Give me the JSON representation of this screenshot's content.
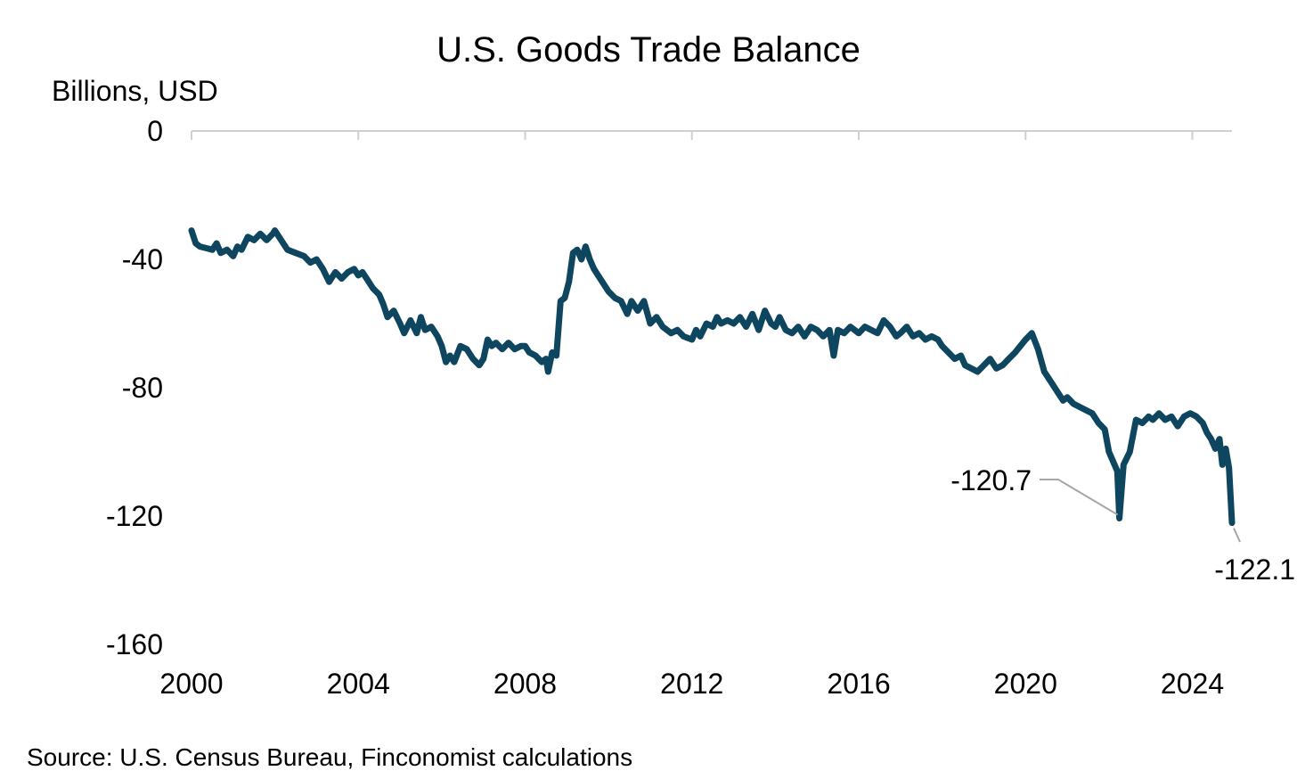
{
  "chart_data": {
    "type": "line",
    "title": "U.S. Goods Trade Balance",
    "ylabel": "Billions, USD",
    "xlabel": "",
    "source": "Source: U.S. Census Bureau, Finconomist calculations",
    "xlim": [
      2000,
      2024.95
    ],
    "ylim": [
      -160,
      0
    ],
    "x_ticks": [
      2000,
      2004,
      2008,
      2012,
      2016,
      2020,
      2024
    ],
    "y_ticks": [
      0,
      -40,
      -80,
      -120,
      -160
    ],
    "series": [
      {
        "name": "U.S. Goods Trade Balance",
        "color": "#0e4660",
        "points": [
          [
            2000.0,
            -31
          ],
          [
            2000.1,
            -35
          ],
          [
            2000.2,
            -36
          ],
          [
            2000.35,
            -36.5
          ],
          [
            2000.5,
            -37
          ],
          [
            2000.6,
            -35
          ],
          [
            2000.7,
            -38
          ],
          [
            2000.85,
            -37
          ],
          [
            2001.0,
            -39
          ],
          [
            2001.1,
            -36
          ],
          [
            2001.2,
            -37
          ],
          [
            2001.35,
            -33
          ],
          [
            2001.5,
            -34
          ],
          [
            2001.65,
            -32
          ],
          [
            2001.8,
            -34
          ],
          [
            2001.95,
            -32
          ],
          [
            2002.0,
            -31
          ],
          [
            2002.15,
            -34
          ],
          [
            2002.3,
            -37
          ],
          [
            2002.5,
            -38
          ],
          [
            2002.7,
            -39
          ],
          [
            2002.85,
            -41
          ],
          [
            2003.0,
            -40
          ],
          [
            2003.15,
            -43
          ],
          [
            2003.3,
            -47
          ],
          [
            2003.45,
            -44
          ],
          [
            2003.6,
            -46
          ],
          [
            2003.75,
            -44
          ],
          [
            2003.9,
            -43
          ],
          [
            2004.0,
            -45
          ],
          [
            2004.1,
            -44
          ],
          [
            2004.2,
            -46
          ],
          [
            2004.35,
            -49
          ],
          [
            2004.5,
            -51
          ],
          [
            2004.6,
            -54
          ],
          [
            2004.7,
            -58
          ],
          [
            2004.85,
            -56
          ],
          [
            2005.0,
            -60
          ],
          [
            2005.1,
            -63
          ],
          [
            2005.25,
            -59
          ],
          [
            2005.4,
            -63
          ],
          [
            2005.5,
            -58
          ],
          [
            2005.6,
            -62
          ],
          [
            2005.75,
            -61
          ],
          [
            2005.9,
            -64
          ],
          [
            2006.0,
            -67
          ],
          [
            2006.1,
            -72
          ],
          [
            2006.2,
            -70
          ],
          [
            2006.3,
            -72
          ],
          [
            2006.45,
            -67
          ],
          [
            2006.6,
            -68
          ],
          [
            2006.75,
            -71
          ],
          [
            2006.9,
            -73
          ],
          [
            2007.0,
            -71
          ],
          [
            2007.1,
            -65
          ],
          [
            2007.2,
            -67
          ],
          [
            2007.3,
            -66
          ],
          [
            2007.45,
            -68
          ],
          [
            2007.6,
            -66
          ],
          [
            2007.75,
            -68
          ],
          [
            2007.9,
            -67
          ],
          [
            2008.0,
            -67
          ],
          [
            2008.1,
            -69
          ],
          [
            2008.25,
            -70
          ],
          [
            2008.4,
            -72
          ],
          [
            2008.5,
            -71
          ],
          [
            2008.55,
            -75
          ],
          [
            2008.65,
            -69
          ],
          [
            2008.75,
            -70
          ],
          [
            2008.85,
            -53
          ],
          [
            2008.95,
            -52
          ],
          [
            2009.05,
            -47
          ],
          [
            2009.15,
            -38
          ],
          [
            2009.25,
            -37
          ],
          [
            2009.35,
            -40
          ],
          [
            2009.45,
            -36
          ],
          [
            2009.55,
            -40
          ],
          [
            2009.65,
            -43
          ],
          [
            2009.75,
            -45
          ],
          [
            2009.85,
            -47
          ],
          [
            2010.0,
            -50
          ],
          [
            2010.15,
            -52
          ],
          [
            2010.3,
            -53
          ],
          [
            2010.45,
            -57
          ],
          [
            2010.55,
            -53
          ],
          [
            2010.7,
            -56
          ],
          [
            2010.85,
            -53
          ],
          [
            2011.0,
            -60
          ],
          [
            2011.15,
            -58
          ],
          [
            2011.3,
            -61
          ],
          [
            2011.5,
            -63
          ],
          [
            2011.65,
            -62
          ],
          [
            2011.8,
            -64
          ],
          [
            2012.0,
            -65
          ],
          [
            2012.1,
            -62
          ],
          [
            2012.2,
            -64
          ],
          [
            2012.35,
            -60
          ],
          [
            2012.5,
            -61
          ],
          [
            2012.6,
            -58
          ],
          [
            2012.7,
            -60
          ],
          [
            2012.85,
            -59
          ],
          [
            2013.0,
            -60
          ],
          [
            2013.15,
            -58
          ],
          [
            2013.3,
            -61
          ],
          [
            2013.45,
            -57
          ],
          [
            2013.6,
            -62
          ],
          [
            2013.75,
            -56
          ],
          [
            2013.9,
            -60
          ],
          [
            2014.0,
            -61
          ],
          [
            2014.1,
            -58
          ],
          [
            2014.25,
            -62
          ],
          [
            2014.4,
            -63
          ],
          [
            2014.55,
            -61
          ],
          [
            2014.7,
            -64
          ],
          [
            2014.85,
            -61
          ],
          [
            2015.0,
            -62
          ],
          [
            2015.15,
            -64
          ],
          [
            2015.3,
            -62
          ],
          [
            2015.4,
            -70
          ],
          [
            2015.5,
            -62
          ],
          [
            2015.65,
            -63
          ],
          [
            2015.8,
            -61
          ],
          [
            2016.0,
            -63
          ],
          [
            2016.15,
            -61
          ],
          [
            2016.3,
            -62
          ],
          [
            2016.45,
            -63
          ],
          [
            2016.6,
            -59
          ],
          [
            2016.75,
            -61
          ],
          [
            2016.9,
            -64
          ],
          [
            2017.0,
            -63
          ],
          [
            2017.15,
            -61
          ],
          [
            2017.3,
            -64
          ],
          [
            2017.45,
            -63
          ],
          [
            2017.6,
            -65
          ],
          [
            2017.75,
            -64
          ],
          [
            2017.9,
            -65
          ],
          [
            2018.0,
            -67
          ],
          [
            2018.15,
            -69
          ],
          [
            2018.3,
            -71
          ],
          [
            2018.45,
            -70
          ],
          [
            2018.55,
            -73
          ],
          [
            2018.7,
            -74
          ],
          [
            2018.85,
            -75
          ],
          [
            2019.0,
            -73
          ],
          [
            2019.15,
            -71
          ],
          [
            2019.3,
            -74
          ],
          [
            2019.45,
            -73
          ],
          [
            2019.6,
            -71
          ],
          [
            2019.75,
            -69
          ],
          [
            2020.0,
            -65
          ],
          [
            2020.15,
            -63
          ],
          [
            2020.3,
            -68
          ],
          [
            2020.45,
            -75
          ],
          [
            2020.6,
            -78
          ],
          [
            2020.75,
            -81
          ],
          [
            2020.9,
            -84
          ],
          [
            2021.0,
            -83
          ],
          [
            2021.15,
            -85
          ],
          [
            2021.3,
            -86
          ],
          [
            2021.45,
            -87
          ],
          [
            2021.6,
            -88
          ],
          [
            2021.75,
            -91
          ],
          [
            2021.9,
            -93
          ],
          [
            2022.0,
            -100
          ],
          [
            2022.1,
            -103
          ],
          [
            2022.2,
            -106
          ],
          [
            2022.25,
            -120.7
          ],
          [
            2022.35,
            -104
          ],
          [
            2022.5,
            -100
          ],
          [
            2022.65,
            -90
          ],
          [
            2022.8,
            -91
          ],
          [
            2022.95,
            -89
          ],
          [
            2023.05,
            -90
          ],
          [
            2023.2,
            -88
          ],
          [
            2023.35,
            -90
          ],
          [
            2023.5,
            -89
          ],
          [
            2023.65,
            -92
          ],
          [
            2023.8,
            -89
          ],
          [
            2023.95,
            -88
          ],
          [
            2024.1,
            -89
          ],
          [
            2024.25,
            -91
          ],
          [
            2024.35,
            -94
          ],
          [
            2024.45,
            -96
          ],
          [
            2024.55,
            -99
          ],
          [
            2024.65,
            -96
          ],
          [
            2024.72,
            -104
          ],
          [
            2024.8,
            -99
          ],
          [
            2024.88,
            -105
          ],
          [
            2024.95,
            -122.1
          ]
        ]
      }
    ],
    "annotations": [
      {
        "label": "-120.7",
        "x": 2022.25,
        "y": -120.7
      },
      {
        "label": "-122.1",
        "x": 2024.95,
        "y": -122.1
      }
    ]
  }
}
